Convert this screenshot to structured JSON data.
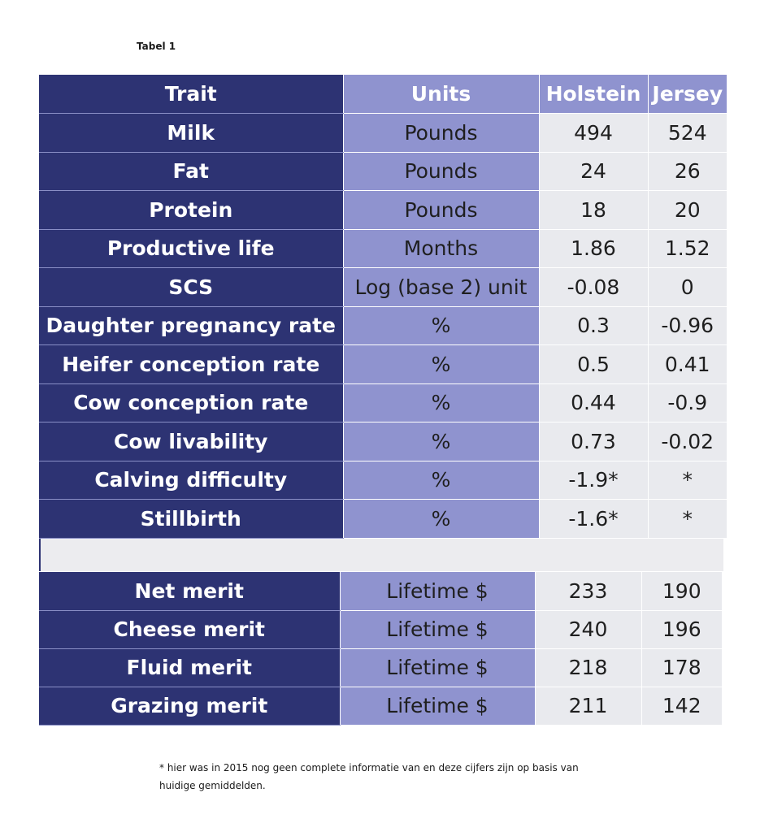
{
  "title": "Tabel 1",
  "table1": {
    "headers": [
      "Trait",
      "Units",
      "Holstein",
      "Jersey"
    ],
    "rows": [
      [
        "Milk",
        "Pounds",
        "494",
        "524"
      ],
      [
        "Fat",
        "Pounds",
        "24",
        "26"
      ],
      [
        "Protein",
        "Pounds",
        "18",
        "20"
      ],
      [
        "Productive life",
        "Months",
        "1.86",
        "1.52"
      ],
      [
        "SCS",
        "Log (base 2) unit",
        "-0.08",
        "0"
      ],
      [
        "Daughter pregnancy rate",
        "%",
        "0.3",
        "-0.96"
      ],
      [
        "Heifer conception rate",
        "%",
        "0.5",
        "0.41"
      ],
      [
        "Cow conception rate",
        "%",
        "0.44",
        "-0.9"
      ],
      [
        "Cow livability",
        "%",
        "0.73",
        "-0.02"
      ],
      [
        "Calving difficulty",
        "%",
        "-1.9*",
        "*"
      ],
      [
        "Stillbirth",
        "%",
        "-1.6*",
        "*"
      ]
    ]
  },
  "table2": {
    "rows": [
      [
        "Net merit",
        "Lifetime $",
        "233",
        "190"
      ],
      [
        "Cheese merit",
        "Lifetime $",
        "240",
        "196"
      ],
      [
        "Fluid merit",
        "Lifetime $",
        "218",
        "178"
      ],
      [
        "Grazing merit",
        "Lifetime $",
        "211",
        "142"
      ]
    ]
  },
  "footnote": {
    "line1": "* hier was in 2015  nog geen complete informatie van en deze cijfers zijn op basis van",
    "line2": "huidige gemiddelden."
  },
  "colors": {
    "dark_navy": "#2d3373",
    "lavender": "#8f93cf",
    "light_gray": "#e9eaee"
  }
}
